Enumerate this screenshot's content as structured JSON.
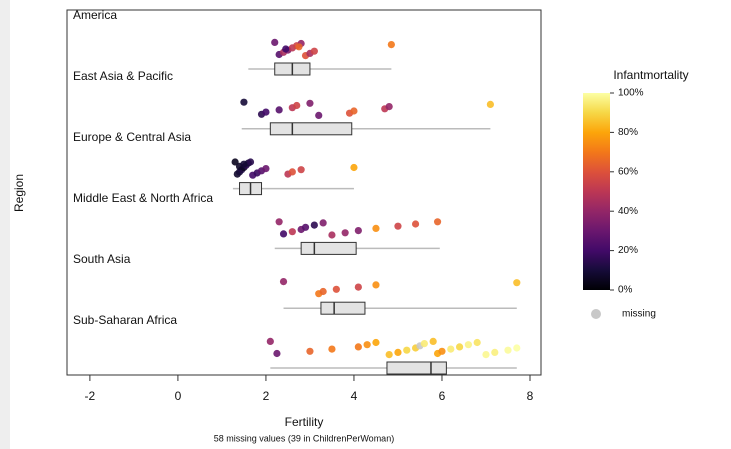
{
  "chart_data": {
    "type": "boxplot",
    "xlabel": "Fertility",
    "ylabel": "Region",
    "note": "58 missing values (39 in ChildrenPerWoman)",
    "categories": [
      "America",
      "East Asia & Pacific",
      "Europe & Central Asia",
      "Middle East & North Africa",
      "South Asia",
      "Sub-Saharan Africa"
    ],
    "boxes": [
      {
        "whislo": 1.6,
        "q1": 2.2,
        "med": 2.6,
        "q3": 3.0,
        "whishi": 4.85
      },
      {
        "whislo": 1.45,
        "q1": 2.1,
        "med": 2.6,
        "q3": 3.95,
        "whishi": 7.1
      },
      {
        "whislo": 1.25,
        "q1": 1.4,
        "med": 1.65,
        "q3": 1.9,
        "whishi": 4.0
      },
      {
        "whislo": 2.2,
        "q1": 2.8,
        "med": 3.1,
        "q3": 4.05,
        "whishi": 5.95
      },
      {
        "whislo": 2.4,
        "q1": 3.25,
        "med": 3.55,
        "q3": 4.25,
        "whishi": 7.7
      },
      {
        "whislo": 2.1,
        "q1": 4.75,
        "med": 5.75,
        "q3": 6.1,
        "whishi": 7.7
      }
    ],
    "points": [
      {
        "x": [
          2.2,
          2.3,
          2.4,
          2.5,
          2.6,
          2.7,
          2.8,
          2.9,
          3.0,
          3.1,
          2.45,
          2.75,
          4.85
        ],
        "mortality": [
          30,
          25,
          45,
          35,
          50,
          55,
          40,
          60,
          45,
          55,
          20,
          65,
          70
        ]
      },
      {
        "x": [
          1.5,
          1.9,
          2.0,
          2.3,
          2.6,
          2.7,
          3.0,
          3.2,
          3.9,
          4.0,
          4.7,
          4.8,
          7.1
        ],
        "mortality": [
          10,
          15,
          20,
          25,
          50,
          55,
          35,
          30,
          60,
          65,
          50,
          40,
          85
        ]
      },
      {
        "x": [
          1.3,
          1.35,
          1.4,
          1.45,
          1.5,
          1.55,
          1.6,
          1.7,
          1.8,
          1.9,
          2.0,
          1.4,
          1.5,
          1.65,
          2.5,
          2.6,
          2.8,
          4.0
        ],
        "mortality": [
          5,
          8,
          10,
          12,
          6,
          15,
          10,
          20,
          18,
          25,
          30,
          7,
          9,
          14,
          50,
          60,
          55,
          80
        ]
      },
      {
        "x": [
          2.3,
          2.4,
          2.6,
          2.8,
          2.9,
          3.1,
          3.3,
          3.5,
          3.8,
          4.1,
          4.5,
          5.0,
          5.4,
          5.9
        ],
        "mortality": [
          40,
          20,
          50,
          30,
          25,
          15,
          35,
          45,
          40,
          35,
          75,
          55,
          60,
          65
        ]
      },
      {
        "x": [
          2.4,
          3.2,
          3.3,
          3.6,
          4.1,
          4.5,
          7.7
        ],
        "mortality": [
          40,
          70,
          65,
          60,
          55,
          75,
          85
        ]
      },
      {
        "x": [
          2.1,
          2.25,
          3.0,
          3.5,
          4.1,
          4.3,
          4.5,
          4.8,
          5.0,
          5.2,
          5.4,
          5.5,
          5.6,
          5.8,
          5.9,
          6.0,
          6.2,
          6.4,
          6.6,
          6.8,
          7.0,
          7.2,
          7.5,
          7.7
        ],
        "mortality": [
          40,
          30,
          65,
          70,
          70,
          75,
          80,
          85,
          80,
          90,
          88,
          null,
          95,
          85,
          80,
          75,
          95,
          90,
          97,
          93,
          98,
          96,
          99,
          100
        ]
      }
    ],
    "xlim": [
      -2.52,
      8.25
    ],
    "xticks": [
      -2,
      0,
      2,
      4,
      6,
      8
    ],
    "colorbar": {
      "title": "Infantmortality",
      "lim": [
        0,
        100
      ],
      "ticks": [
        {
          "value": 0,
          "label": "0%"
        },
        {
          "value": 20,
          "label": "20%"
        },
        {
          "value": 40,
          "label": "40%"
        },
        {
          "value": 60,
          "label": "60%"
        },
        {
          "value": 80,
          "label": "80%"
        },
        {
          "value": 100,
          "label": "100%"
        }
      ]
    },
    "missing_label": "missing",
    "missing_color": "#c8c8c8"
  }
}
